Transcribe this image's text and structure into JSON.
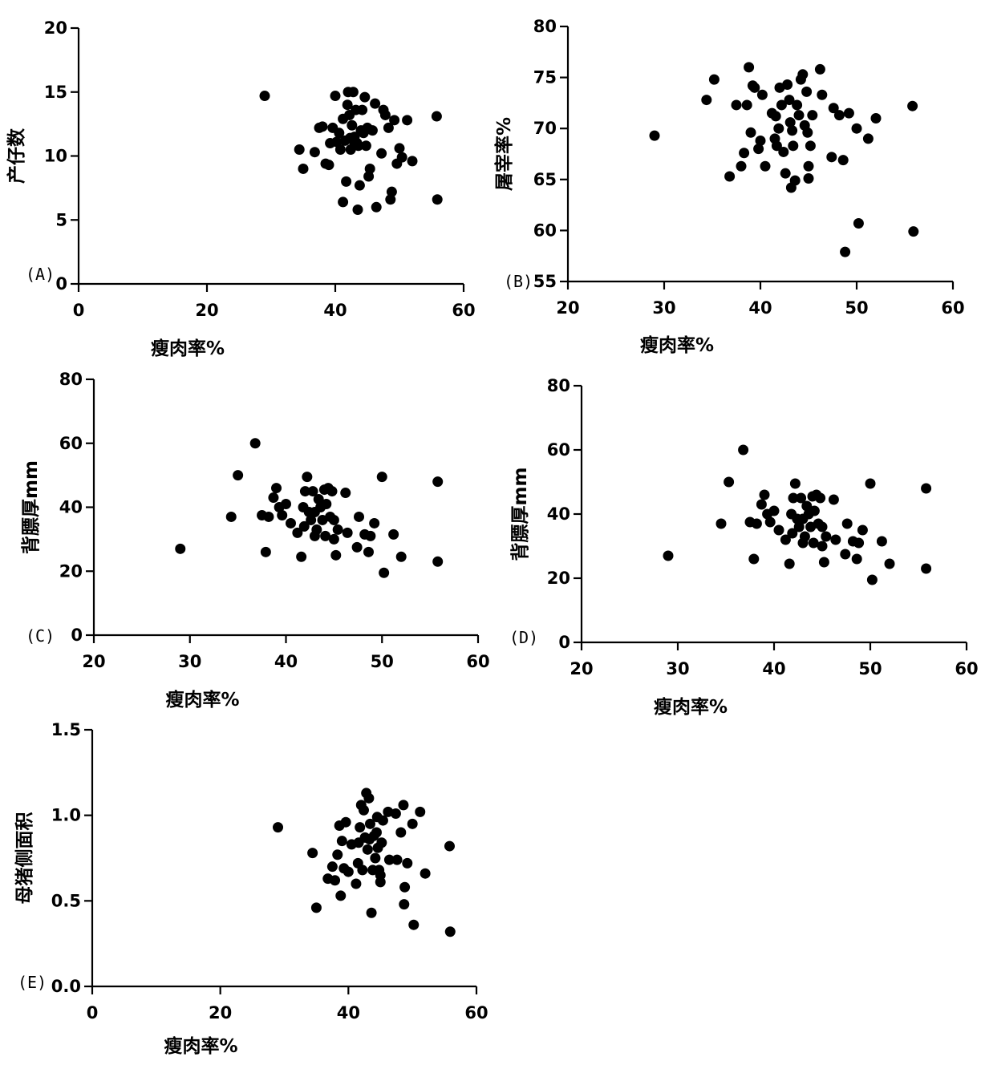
{
  "chart_data": [
    {
      "type": "scatter",
      "panel": "(A)",
      "xlabel": "瘦肉率%",
      "ylabel": "产仔数",
      "xlim": [
        0,
        60
      ],
      "ylim": [
        0,
        20
      ],
      "xticks": [
        0,
        20,
        40,
        60
      ],
      "yticks": [
        0,
        5,
        10,
        15,
        20
      ],
      "grid": false,
      "points": [
        [
          29,
          14.7
        ],
        [
          34.4,
          10.5
        ],
        [
          35,
          9
        ],
        [
          36.8,
          10.3
        ],
        [
          37.5,
          12.2
        ],
        [
          38,
          12.3
        ],
        [
          38.5,
          9.4
        ],
        [
          39,
          9.3
        ],
        [
          39.2,
          11
        ],
        [
          39.6,
          12.2
        ],
        [
          40,
          14.7
        ],
        [
          40.2,
          11.1
        ],
        [
          40.6,
          11.8
        ],
        [
          40.8,
          10.5
        ],
        [
          41.2,
          12.9
        ],
        [
          41.5,
          11.2
        ],
        [
          41.7,
          8
        ],
        [
          41.9,
          14
        ],
        [
          42,
          15
        ],
        [
          42.2,
          13.2
        ],
        [
          42.4,
          10.5
        ],
        [
          42.6,
          12.4
        ],
        [
          42.8,
          15
        ],
        [
          43,
          11.5
        ],
        [
          43.2,
          13.6
        ],
        [
          43.4,
          11
        ],
        [
          43.6,
          10.8
        ],
        [
          43.8,
          7.7
        ],
        [
          44,
          12
        ],
        [
          44.2,
          13.6
        ],
        [
          44.4,
          11.8
        ],
        [
          44.6,
          14.6
        ],
        [
          44.8,
          10.8
        ],
        [
          45,
          12.2
        ],
        [
          45.2,
          8.4
        ],
        [
          45.4,
          9
        ],
        [
          45.8,
          12
        ],
        [
          46.2,
          14.1
        ],
        [
          46.4,
          6
        ],
        [
          47.2,
          10.2
        ],
        [
          47.5,
          13.6
        ],
        [
          47.8,
          13.2
        ],
        [
          48.3,
          12.2
        ],
        [
          48.6,
          6.6
        ],
        [
          48.8,
          7.2
        ],
        [
          49.2,
          12.8
        ],
        [
          49.6,
          9.4
        ],
        [
          50,
          10.6
        ],
        [
          50.4,
          9.9
        ],
        [
          51.2,
          12.8
        ],
        [
          52,
          9.6
        ],
        [
          55.8,
          13.1
        ],
        [
          55.9,
          6.6
        ],
        [
          43.5,
          5.8
        ],
        [
          41.2,
          6.4
        ],
        [
          42.3,
          11.4
        ],
        [
          43,
          11
        ]
      ]
    },
    {
      "type": "scatter",
      "panel": "(B)",
      "xlabel": "瘦肉率%",
      "ylabel": "屠宰率%",
      "xlim": [
        20,
        60
      ],
      "ylim": [
        55,
        80
      ],
      "xticks": [
        20,
        30,
        40,
        50,
        60
      ],
      "yticks": [
        55,
        60,
        65,
        70,
        75,
        80
      ],
      "grid": false,
      "points": [
        [
          29,
          69.3
        ],
        [
          34.4,
          72.8
        ],
        [
          35.2,
          74.8
        ],
        [
          36.8,
          65.3
        ],
        [
          37.5,
          72.3
        ],
        [
          38,
          66.3
        ],
        [
          38.3,
          67.6
        ],
        [
          38.6,
          72.3
        ],
        [
          38.8,
          76
        ],
        [
          39,
          69.6
        ],
        [
          39.2,
          74.2
        ],
        [
          39.4,
          74
        ],
        [
          39.8,
          68
        ],
        [
          40,
          68.8
        ],
        [
          40.2,
          73.3
        ],
        [
          40.5,
          66.3
        ],
        [
          41.2,
          71.5
        ],
        [
          41.5,
          69
        ],
        [
          41.7,
          68.3
        ],
        [
          41.9,
          70
        ],
        [
          42,
          74
        ],
        [
          42.2,
          72.3
        ],
        [
          42.4,
          67.7
        ],
        [
          42.6,
          65.6
        ],
        [
          42.8,
          74.3
        ],
        [
          43,
          72.8
        ],
        [
          43.2,
          64.2
        ],
        [
          43.4,
          68.3
        ],
        [
          43.6,
          64.9
        ],
        [
          43.8,
          72.3
        ],
        [
          44,
          71.3
        ],
        [
          44.2,
          74.8
        ],
        [
          44.4,
          75.3
        ],
        [
          44.6,
          70.3
        ],
        [
          44.8,
          73.6
        ],
        [
          45,
          66.3
        ],
        [
          45.2,
          68.3
        ],
        [
          45.4,
          71.3
        ],
        [
          46.2,
          75.8
        ],
        [
          46.4,
          73.3
        ],
        [
          47.4,
          67.2
        ],
        [
          47.6,
          72
        ],
        [
          48.2,
          71.3
        ],
        [
          48.6,
          66.9
        ],
        [
          48.8,
          57.9
        ],
        [
          49.2,
          71.5
        ],
        [
          50,
          70
        ],
        [
          50.2,
          60.7
        ],
        [
          51.2,
          69
        ],
        [
          52,
          71
        ],
        [
          55.8,
          72.2
        ],
        [
          55.9,
          59.9
        ],
        [
          43.3,
          69.8
        ],
        [
          44.9,
          69.6
        ],
        [
          45,
          65.1
        ],
        [
          43.1,
          70.6
        ],
        [
          41.6,
          71.2
        ]
      ]
    },
    {
      "type": "scatter",
      "panel": "(C)",
      "xlabel": "瘦肉率%",
      "ylabel": "背膘厚mm",
      "xlim": [
        20,
        60
      ],
      "ylim": [
        0,
        80
      ],
      "xticks": [
        20,
        30,
        40,
        50,
        60
      ],
      "yticks": [
        0,
        20,
        40,
        60,
        80
      ],
      "grid": false,
      "points": [
        [
          29,
          27
        ],
        [
          34.3,
          37
        ],
        [
          35,
          50
        ],
        [
          36.8,
          60
        ],
        [
          37.5,
          37.5
        ],
        [
          37.9,
          26
        ],
        [
          38.2,
          37
        ],
        [
          38.7,
          43
        ],
        [
          39,
          46
        ],
        [
          39.3,
          40
        ],
        [
          39.6,
          37.5
        ],
        [
          40,
          41
        ],
        [
          40.5,
          35
        ],
        [
          41.2,
          32
        ],
        [
          41.6,
          24.5
        ],
        [
          41.8,
          40
        ],
        [
          42,
          45
        ],
        [
          42.2,
          49.5
        ],
        [
          42.4,
          38.5
        ],
        [
          42.6,
          36
        ],
        [
          42.8,
          45
        ],
        [
          43,
          31
        ],
        [
          43.2,
          33
        ],
        [
          43.4,
          42.5
        ],
        [
          43.6,
          40
        ],
        [
          43.8,
          36
        ],
        [
          44,
          45.5
        ],
        [
          44.2,
          41
        ],
        [
          44.4,
          46
        ],
        [
          44.6,
          37
        ],
        [
          44.8,
          45
        ],
        [
          45,
          30
        ],
        [
          45.2,
          25
        ],
        [
          45.4,
          33
        ],
        [
          46.2,
          44.5
        ],
        [
          46.4,
          32
        ],
        [
          47.4,
          27.5
        ],
        [
          47.6,
          37
        ],
        [
          48.2,
          31.5
        ],
        [
          48.6,
          26
        ],
        [
          48.8,
          31
        ],
        [
          49.2,
          35
        ],
        [
          50,
          49.5
        ],
        [
          50.2,
          19.5
        ],
        [
          51.2,
          31.5
        ],
        [
          52,
          24.5
        ],
        [
          55.8,
          48
        ],
        [
          55.8,
          23
        ],
        [
          43,
          38.5
        ],
        [
          45,
          36
        ],
        [
          41.9,
          34
        ],
        [
          44.1,
          31
        ]
      ]
    },
    {
      "type": "scatter",
      "panel": "(D)",
      "xlabel": "瘦肉率%",
      "ylabel": "背膘厚mm",
      "xlim": [
        20,
        60
      ],
      "ylim": [
        0,
        80
      ],
      "xticks": [
        20,
        30,
        40,
        50,
        60
      ],
      "yticks": [
        0,
        20,
        40,
        60,
        80
      ],
      "grid": false,
      "points": [
        [
          29,
          27
        ],
        [
          34.5,
          37
        ],
        [
          35.3,
          50
        ],
        [
          36.8,
          60
        ],
        [
          37.5,
          37.5
        ],
        [
          37.9,
          26
        ],
        [
          38.2,
          37
        ],
        [
          38.7,
          43
        ],
        [
          39,
          46
        ],
        [
          39.3,
          40
        ],
        [
          39.6,
          37.5
        ],
        [
          40,
          41
        ],
        [
          40.5,
          35
        ],
        [
          41.2,
          32
        ],
        [
          41.6,
          24.5
        ],
        [
          41.8,
          40
        ],
        [
          42,
          45
        ],
        [
          42.2,
          49.5
        ],
        [
          42.4,
          38.5
        ],
        [
          42.6,
          36
        ],
        [
          42.8,
          45
        ],
        [
          43,
          31
        ],
        [
          43.2,
          33
        ],
        [
          43.4,
          42.5
        ],
        [
          43.6,
          40
        ],
        [
          43.8,
          36
        ],
        [
          44,
          45.5
        ],
        [
          44.2,
          41
        ],
        [
          44.4,
          46
        ],
        [
          44.6,
          37
        ],
        [
          44.8,
          45
        ],
        [
          45,
          30
        ],
        [
          45.2,
          25
        ],
        [
          45.4,
          33
        ],
        [
          46.2,
          44.5
        ],
        [
          46.4,
          32
        ],
        [
          47.4,
          27.5
        ],
        [
          47.6,
          37
        ],
        [
          48.2,
          31.5
        ],
        [
          48.6,
          26
        ],
        [
          48.8,
          31
        ],
        [
          49.2,
          35
        ],
        [
          50,
          49.5
        ],
        [
          50.2,
          19.5
        ],
        [
          51.2,
          31.5
        ],
        [
          52,
          24.5
        ],
        [
          55.8,
          48
        ],
        [
          55.8,
          23
        ],
        [
          43,
          38.5
        ],
        [
          45,
          36
        ],
        [
          41.9,
          34
        ],
        [
          44.1,
          31
        ]
      ]
    },
    {
      "type": "scatter",
      "panel": "(E)",
      "xlabel": "瘦肉率%",
      "ylabel": "母猪侧面积",
      "xlim": [
        0,
        60
      ],
      "ylim": [
        0.0,
        1.5
      ],
      "xticks": [
        0,
        20,
        40,
        60
      ],
      "yticks": [
        "0.0",
        "0.5",
        "1.0",
        "1.5"
      ],
      "grid": false,
      "points": [
        [
          29,
          0.93
        ],
        [
          34.4,
          0.78
        ],
        [
          35,
          0.46
        ],
        [
          36.8,
          0.63
        ],
        [
          37.5,
          0.7
        ],
        [
          37.9,
          0.62
        ],
        [
          38.3,
          0.77
        ],
        [
          38.6,
          0.94
        ],
        [
          38.8,
          0.53
        ],
        [
          39,
          0.85
        ],
        [
          39.3,
          0.69
        ],
        [
          39.6,
          0.96
        ],
        [
          40,
          0.67
        ],
        [
          40.5,
          0.83
        ],
        [
          41.2,
          0.6
        ],
        [
          41.5,
          0.72
        ],
        [
          41.8,
          0.93
        ],
        [
          42,
          1.06
        ],
        [
          42.2,
          0.68
        ],
        [
          42.4,
          1.03
        ],
        [
          42.6,
          0.87
        ],
        [
          42.8,
          1.13
        ],
        [
          43,
          0.8
        ],
        [
          43.2,
          1.1
        ],
        [
          43.4,
          0.95
        ],
        [
          43.6,
          0.43
        ],
        [
          43.8,
          0.68
        ],
        [
          44,
          0.88
        ],
        [
          44.2,
          0.75
        ],
        [
          44.4,
          0.9
        ],
        [
          44.6,
          0.81
        ],
        [
          44.8,
          0.68
        ],
        [
          45,
          0.61
        ],
        [
          45.2,
          0.84
        ],
        [
          45.4,
          0.97
        ],
        [
          46.2,
          1.02
        ],
        [
          46.4,
          0.74
        ],
        [
          47.4,
          1.01
        ],
        [
          47.6,
          0.74
        ],
        [
          48.2,
          0.9
        ],
        [
          48.6,
          1.06
        ],
        [
          48.8,
          0.58
        ],
        [
          49.2,
          0.72
        ],
        [
          50,
          0.95
        ],
        [
          50.2,
          0.36
        ],
        [
          51.2,
          1.02
        ],
        [
          52,
          0.66
        ],
        [
          55.8,
          0.82
        ],
        [
          55.9,
          0.32
        ],
        [
          45,
          0.65
        ],
        [
          43.3,
          0.86
        ],
        [
          44.5,
          0.99
        ],
        [
          41.6,
          0.84
        ],
        [
          48.7,
          0.48
        ]
      ]
    }
  ]
}
